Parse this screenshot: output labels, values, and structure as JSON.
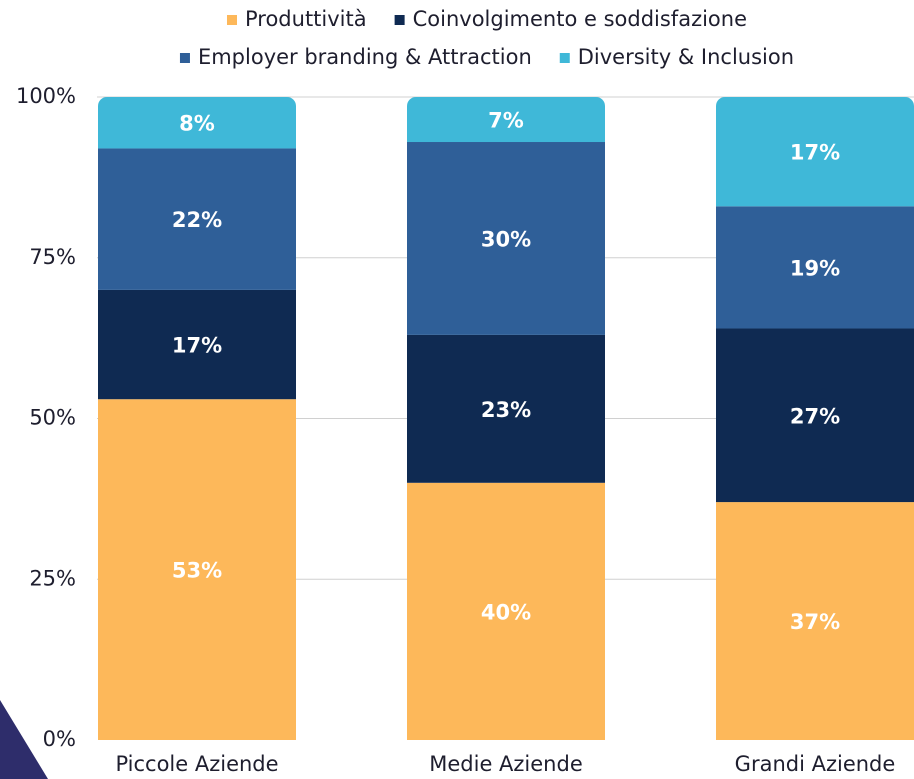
{
  "chart_data": {
    "type": "stacked_bar",
    "categories": [
      "Piccole Aziende",
      "Medie Aziende",
      "Grandi Aziende"
    ],
    "series": [
      {
        "name": "Produttività",
        "color": "#fdb85a",
        "values": [
          53,
          40,
          37
        ],
        "value_labels": [
          "53%",
          "40%",
          "37%"
        ]
      },
      {
        "name": "Coinvolgimento e soddisfazione",
        "color": "#0f2a52",
        "values": [
          17,
          23,
          27
        ],
        "value_labels": [
          "17%",
          "23%",
          "27%"
        ]
      },
      {
        "name": "Employer branding & Attraction",
        "color": "#2f5f98",
        "values": [
          22,
          30,
          19
        ],
        "value_labels": [
          "22%",
          "30%",
          "19%"
        ]
      },
      {
        "name": "Diversity & Inclusion",
        "color": "#3fb8d8",
        "values": [
          8,
          7,
          17
        ],
        "value_labels": [
          "8%",
          "7%",
          "17%"
        ]
      }
    ],
    "ylim": [
      0,
      100
    ],
    "yticks": [
      {
        "value": 0,
        "label": "0%"
      },
      {
        "value": 25,
        "label": "25%"
      },
      {
        "value": 50,
        "label": "50%"
      },
      {
        "value": 75,
        "label": "75%"
      },
      {
        "value": 100,
        "label": "100%"
      }
    ],
    "grid": true
  }
}
